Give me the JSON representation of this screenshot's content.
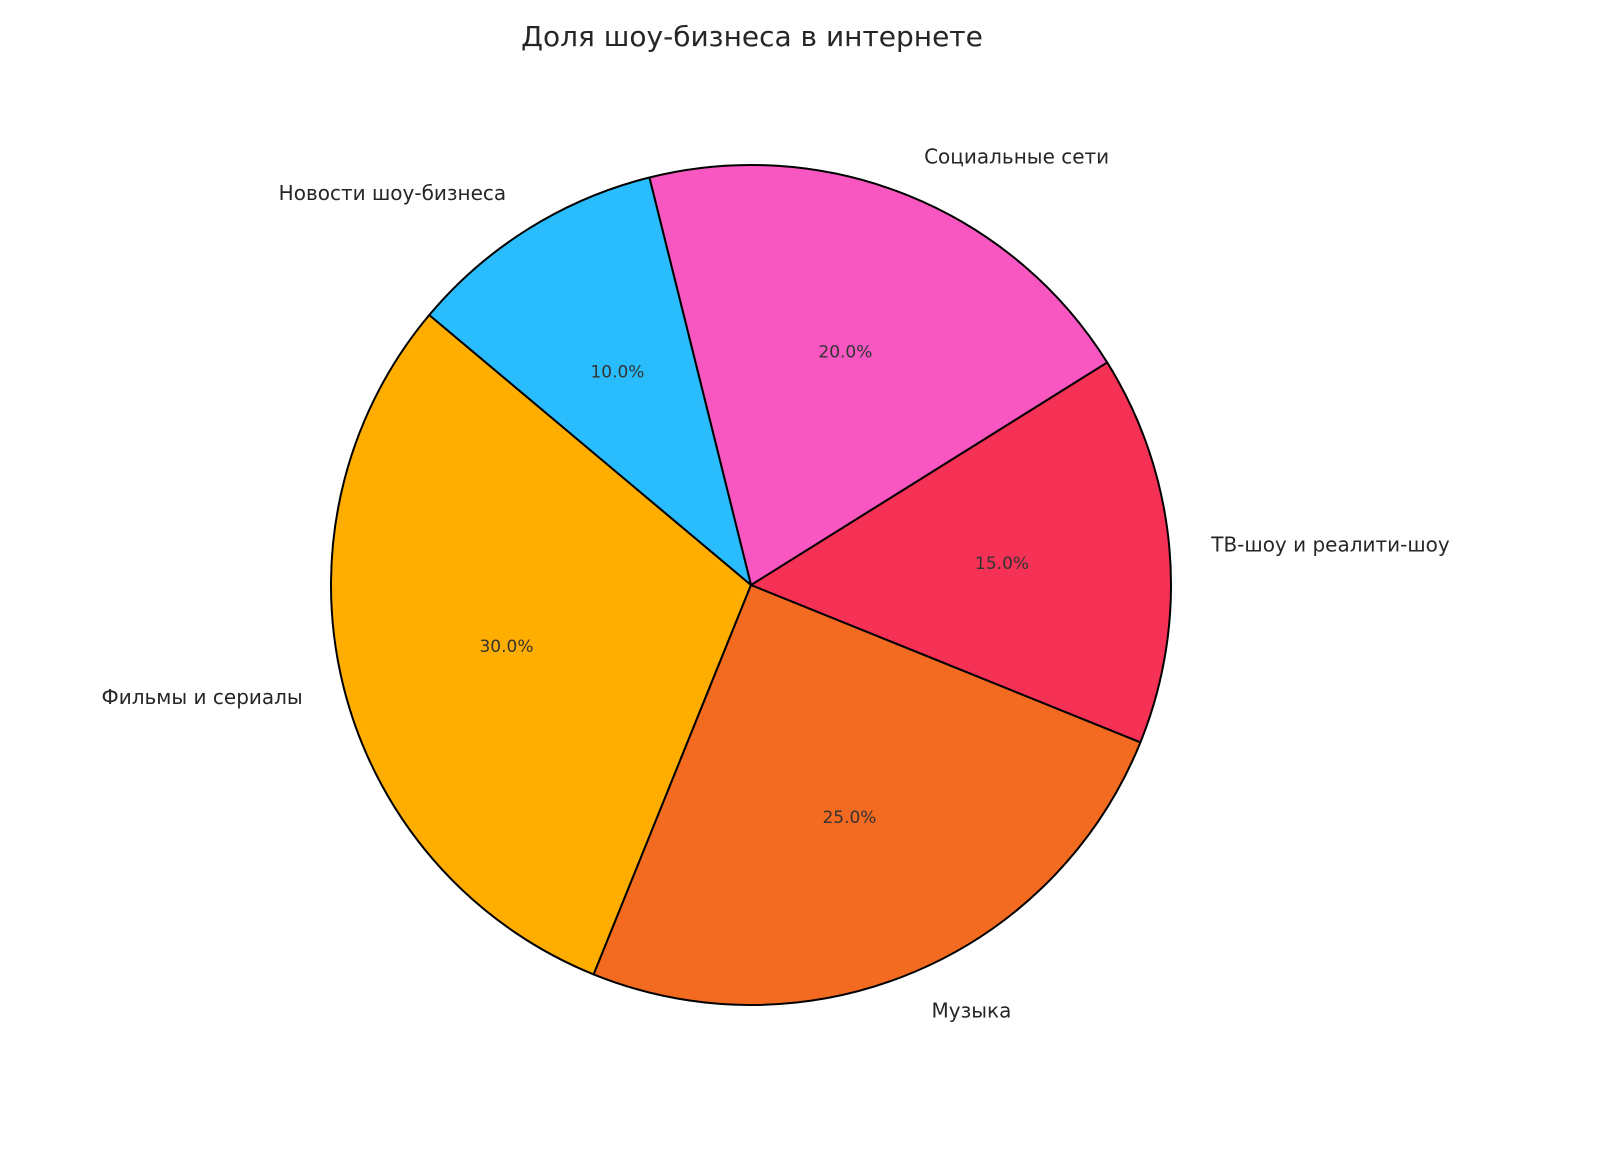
{
  "chart_data": {
    "type": "pie",
    "title": "Доля шоу-бизнеса в интернете",
    "start_angle": 140,
    "direction": "counterclockwise",
    "slices": [
      {
        "label": "Фильмы и сериалы",
        "value": 30,
        "pct_label": "30.0%",
        "color": "#FFAE00"
      },
      {
        "label": "Музыка",
        "value": 25,
        "pct_label": "25.0%",
        "color": "#F26B21"
      },
      {
        "label": "ТВ-шоу и реалити-шоу",
        "value": 15,
        "pct_label": "15.0%",
        "color": "#F53255"
      },
      {
        "label": "Социальные сети",
        "value": 20,
        "pct_label": "20.0%",
        "color": "#F857C1"
      },
      {
        "label": "Новости шоу-бизнеса",
        "value": 10,
        "pct_label": "10.0%",
        "color": "#29BDFD"
      }
    ]
  }
}
